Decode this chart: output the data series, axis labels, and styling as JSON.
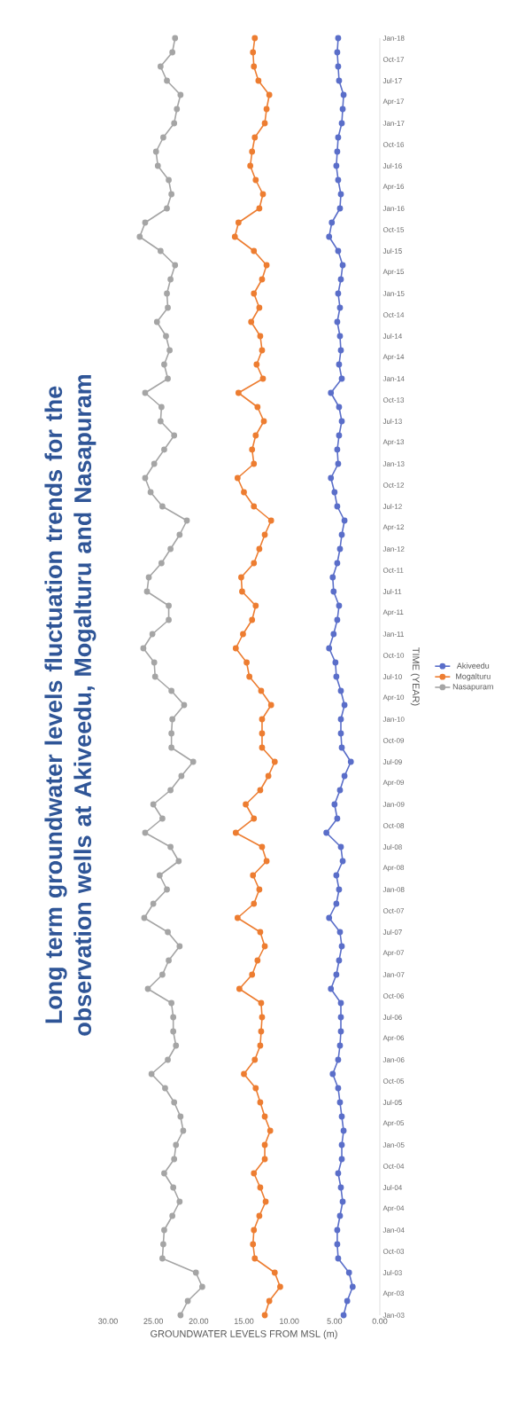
{
  "chart_data": {
    "type": "line",
    "title": "Long term groundwater levels fluctuation trends for the observation wells at Akiveedu, Mogalturu and Nasapuram",
    "orientation": "horizontal",
    "ylabel": "TIME (YEAR)",
    "xlabel": "GROUNDWATER LEVELS FROM MSL (m)",
    "x": [
      "2003-01",
      "2003-03",
      "2003-05",
      "2003-07",
      "2003-09",
      "2003-11",
      "2004-01",
      "2004-03",
      "2004-05",
      "2004-07",
      "2004-09",
      "2004-11",
      "2005-01",
      "2005-03",
      "2005-05",
      "2005-07",
      "2005-09",
      "2005-11",
      "2006-01",
      "2006-03",
      "2006-05",
      "2006-07",
      "2006-09",
      "2006-11",
      "2007-01",
      "2007-03",
      "2007-05",
      "2007-07",
      "2007-09",
      "2007-11",
      "2008-01",
      "2008-03",
      "2008-05",
      "2008-07",
      "2008-09",
      "2008-11",
      "2009-01",
      "2009-03",
      "2009-05",
      "2009-07",
      "2009-09",
      "2009-11",
      "2010-01",
      "2010-03",
      "2010-05",
      "2010-07",
      "2010-09",
      "2010-11",
      "2011-01",
      "2011-03",
      "2011-05",
      "2011-07",
      "2011-09",
      "2011-11",
      "2012-01",
      "2012-03",
      "2012-05",
      "2012-07",
      "2012-09",
      "2012-11",
      "2013-01",
      "2013-03",
      "2013-05",
      "2013-07",
      "2013-09",
      "2013-11",
      "2014-01",
      "2014-03",
      "2014-05",
      "2014-07",
      "2014-09",
      "2014-11",
      "2015-01",
      "2015-03",
      "2015-05",
      "2015-07",
      "2015-09",
      "2015-11",
      "2016-01",
      "2016-03",
      "2016-05",
      "2016-07",
      "2016-09",
      "2016-11",
      "2017-01",
      "2017-03",
      "2017-05",
      "2017-07",
      "2017-09",
      "2017-11",
      "2018-01"
    ],
    "ylim": [
      "2003-01",
      "2018-01"
    ],
    "yticks": [
      {
        "value": "2003-01",
        "label": "Jan-03"
      },
      {
        "value": "2003-04",
        "label": "Apr-03"
      },
      {
        "value": "2003-07",
        "label": "Jul-03"
      },
      {
        "value": "2003-10",
        "label": "Oct-03"
      },
      {
        "value": "2004-01",
        "label": "Jan-04"
      },
      {
        "value": "2004-04",
        "label": "Apr-04"
      },
      {
        "value": "2004-07",
        "label": "Jul-04"
      },
      {
        "value": "2004-10",
        "label": "Oct-04"
      },
      {
        "value": "2005-01",
        "label": "Jan-05"
      },
      {
        "value": "2005-04",
        "label": "Apr-05"
      },
      {
        "value": "2005-07",
        "label": "Jul-05"
      },
      {
        "value": "2005-10",
        "label": "Oct-05"
      },
      {
        "value": "2006-01",
        "label": "Jan-06"
      },
      {
        "value": "2006-04",
        "label": "Apr-06"
      },
      {
        "value": "2006-07",
        "label": "Jul-06"
      },
      {
        "value": "2006-10",
        "label": "Oct-06"
      },
      {
        "value": "2007-01",
        "label": "Jan-07"
      },
      {
        "value": "2007-04",
        "label": "Apr-07"
      },
      {
        "value": "2007-07",
        "label": "Jul-07"
      },
      {
        "value": "2007-10",
        "label": "Oct-07"
      },
      {
        "value": "2008-01",
        "label": "Jan-08"
      },
      {
        "value": "2008-04",
        "label": "Apr-08"
      },
      {
        "value": "2008-07",
        "label": "Jul-08"
      },
      {
        "value": "2008-10",
        "label": "Oct-08"
      },
      {
        "value": "2009-01",
        "label": "Jan-09"
      },
      {
        "value": "2009-04",
        "label": "Apr-09"
      },
      {
        "value": "2009-07",
        "label": "Jul-09"
      },
      {
        "value": "2009-10",
        "label": "Oct-09"
      },
      {
        "value": "2010-01",
        "label": "Jan-10"
      },
      {
        "value": "2010-04",
        "label": "Apr-10"
      },
      {
        "value": "2010-07",
        "label": "Jul-10"
      },
      {
        "value": "2010-10",
        "label": "Oct-10"
      },
      {
        "value": "2011-01",
        "label": "Jan-11"
      },
      {
        "value": "2011-04",
        "label": "Apr-11"
      },
      {
        "value": "2011-07",
        "label": "Jul-11"
      },
      {
        "value": "2011-10",
        "label": "Oct-11"
      },
      {
        "value": "2012-01",
        "label": "Jan-12"
      },
      {
        "value": "2012-04",
        "label": "Apr-12"
      },
      {
        "value": "2012-07",
        "label": "Jul-12"
      },
      {
        "value": "2012-10",
        "label": "Oct-12"
      },
      {
        "value": "2013-01",
        "label": "Jan-13"
      },
      {
        "value": "2013-04",
        "label": "Apr-13"
      },
      {
        "value": "2013-07",
        "label": "Jul-13"
      },
      {
        "value": "2013-10",
        "label": "Oct-13"
      },
      {
        "value": "2014-01",
        "label": "Jan-14"
      },
      {
        "value": "2014-04",
        "label": "Apr-14"
      },
      {
        "value": "2014-07",
        "label": "Jul-14"
      },
      {
        "value": "2014-10",
        "label": "Oct-14"
      },
      {
        "value": "2015-01",
        "label": "Jan-15"
      },
      {
        "value": "2015-04",
        "label": "Apr-15"
      },
      {
        "value": "2015-07",
        "label": "Jul-15"
      },
      {
        "value": "2015-10",
        "label": "Oct-15"
      },
      {
        "value": "2016-01",
        "label": "Jan-16"
      },
      {
        "value": "2016-04",
        "label": "Apr-16"
      },
      {
        "value": "2016-07",
        "label": "Jul-16"
      },
      {
        "value": "2016-10",
        "label": "Oct-16"
      },
      {
        "value": "2017-01",
        "label": "Jan-17"
      },
      {
        "value": "2017-04",
        "label": "Apr-17"
      },
      {
        "value": "2017-07",
        "label": "Jul-17"
      },
      {
        "value": "2017-10",
        "label": "Oct-17"
      },
      {
        "value": "2018-01",
        "label": "Jan-18"
      }
    ],
    "xlim": [
      30,
      0
    ],
    "xticks": [
      {
        "value": 30,
        "label": "30.00"
      },
      {
        "value": 25,
        "label": "25.00"
      },
      {
        "value": 20,
        "label": "20.00"
      },
      {
        "value": 15,
        "label": "15.00"
      },
      {
        "value": 10,
        "label": "10.00"
      },
      {
        "value": 5,
        "label": "5.00"
      },
      {
        "value": 0,
        "label": "0.00"
      }
    ],
    "legend": "bottom",
    "marker": "circle",
    "series": [
      {
        "name": "Akiveedu",
        "color": "#5a6ec9",
        "values": [
          4.0,
          3.6,
          3.0,
          3.4,
          4.6,
          4.7,
          4.7,
          4.4,
          4.1,
          4.3,
          4.6,
          4.2,
          4.2,
          4.0,
          4.2,
          4.4,
          4.6,
          5.2,
          4.6,
          4.4,
          4.3,
          4.3,
          4.3,
          5.4,
          4.8,
          4.5,
          4.2,
          4.4,
          5.6,
          4.8,
          4.5,
          4.8,
          4.1,
          4.3,
          5.9,
          4.7,
          5.0,
          4.4,
          3.9,
          3.2,
          4.2,
          4.3,
          4.3,
          3.9,
          4.3,
          4.8,
          4.9,
          5.6,
          5.1,
          4.7,
          4.5,
          5.1,
          5.2,
          4.7,
          4.4,
          4.2,
          3.9,
          4.7,
          5.0,
          5.4,
          4.6,
          4.7,
          4.5,
          4.2,
          4.5,
          5.4,
          4.2,
          4.5,
          4.3,
          4.4,
          4.7,
          4.4,
          4.6,
          4.3,
          4.1,
          4.6,
          5.6,
          5.3,
          4.4,
          4.3,
          4.6,
          4.8,
          4.7,
          4.6,
          4.2,
          4.1,
          4.0,
          4.5,
          4.6,
          4.7,
          4.6
        ]
      },
      {
        "name": "Mogalturu",
        "color": "#ed7d31",
        "values": [
          12.7,
          12.2,
          11.0,
          11.6,
          13.8,
          14.0,
          13.9,
          13.3,
          12.6,
          13.2,
          13.9,
          12.7,
          12.7,
          12.1,
          12.7,
          13.2,
          13.7,
          15.0,
          13.8,
          13.2,
          13.1,
          13.0,
          13.1,
          15.5,
          14.1,
          13.5,
          12.7,
          13.2,
          15.7,
          13.9,
          13.3,
          14.0,
          12.5,
          13.0,
          15.9,
          13.9,
          14.8,
          13.2,
          12.3,
          11.6,
          13.0,
          13.0,
          13.0,
          12.0,
          13.1,
          14.4,
          14.7,
          15.9,
          15.1,
          14.1,
          13.7,
          15.2,
          15.3,
          13.9,
          13.3,
          12.7,
          12.0,
          13.9,
          15.0,
          15.7,
          13.9,
          14.1,
          13.7,
          12.8,
          13.5,
          15.6,
          12.9,
          13.6,
          13.0,
          13.2,
          14.2,
          13.3,
          13.9,
          13.0,
          12.5,
          13.9,
          16.0,
          15.6,
          13.3,
          12.9,
          13.7,
          14.3,
          14.1,
          13.8,
          12.7,
          12.5,
          12.2,
          13.4,
          13.9,
          14.0,
          13.8
        ]
      },
      {
        "name": "Nasapuram",
        "color": "#a5a5a5",
        "values": [
          22.0,
          21.2,
          19.6,
          20.3,
          24.0,
          23.9,
          23.8,
          22.9,
          22.1,
          22.8,
          23.8,
          22.7,
          22.5,
          21.7,
          22.0,
          22.7,
          23.7,
          25.2,
          23.4,
          22.5,
          22.8,
          22.8,
          23.0,
          25.6,
          24.0,
          23.3,
          22.1,
          23.4,
          26.0,
          25.0,
          23.5,
          24.3,
          22.2,
          23.1,
          25.9,
          24.0,
          25.0,
          23.1,
          21.9,
          20.6,
          23.0,
          23.0,
          22.9,
          21.6,
          23.0,
          24.8,
          24.9,
          26.1,
          25.1,
          23.3,
          23.3,
          25.7,
          25.5,
          24.1,
          23.1,
          22.1,
          21.3,
          24.0,
          25.3,
          25.9,
          24.9,
          23.8,
          22.7,
          24.2,
          24.1,
          25.9,
          23.4,
          23.8,
          23.2,
          23.6,
          24.6,
          23.4,
          23.5,
          23.1,
          22.6,
          24.2,
          26.5,
          25.9,
          23.5,
          23.0,
          23.3,
          24.5,
          24.7,
          23.9,
          22.7,
          22.4,
          22.0,
          23.5,
          24.2,
          22.9,
          22.6
        ]
      }
    ]
  }
}
